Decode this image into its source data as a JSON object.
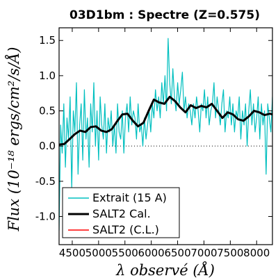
{
  "chart_data": {
    "type": "line",
    "title": "03D1bm : Spectre (Z=0.575)",
    "xlabel": "λ observé (Å)",
    "ylabel": "Flux (10⁻¹⁸ ergs/cm²/s/Å)",
    "xlim": [
      4250,
      8300
    ],
    "ylim": [
      -1.4,
      1.68
    ],
    "xticks": [
      4500,
      5000,
      5500,
      6000,
      6500,
      7000,
      7500,
      8000
    ],
    "xtick_labels": [
      "4500",
      "5000",
      "5500",
      "6000",
      "6500",
      "7000",
      "7500",
      "8000"
    ],
    "yticks": [
      -1.0,
      -0.5,
      0.0,
      0.5,
      1.0,
      1.5
    ],
    "ytick_labels": [
      "-1.0",
      "-0.5",
      "0.0",
      "0.5",
      "1.0",
      "1.5"
    ],
    "zero_line": true,
    "grid": false,
    "legend_position": "lower-left",
    "legend": [
      "Extrait (15 A)",
      "SALT2 Cal.",
      "SALT2 (C.L.)"
    ],
    "series": [
      {
        "name": "Extrait (15 A)",
        "color": "#00bfbf",
        "x": [
          4250,
          4280,
          4310,
          4340,
          4370,
          4400,
          4430,
          4460,
          4490,
          4520,
          4550,
          4580,
          4610,
          4640,
          4670,
          4700,
          4730,
          4760,
          4790,
          4820,
          4850,
          4880,
          4910,
          4940,
          4970,
          5000,
          5030,
          5060,
          5090,
          5120,
          5150,
          5180,
          5210,
          5240,
          5270,
          5300,
          5330,
          5360,
          5390,
          5420,
          5450,
          5480,
          5510,
          5540,
          5570,
          5600,
          5630,
          5660,
          5690,
          5720,
          5750,
          5780,
          5810,
          5840,
          5870,
          5900,
          5930,
          5960,
          5990,
          6020,
          6050,
          6080,
          6110,
          6140,
          6170,
          6200,
          6230,
          6260,
          6290,
          6320,
          6350,
          6380,
          6410,
          6440,
          6470,
          6500,
          6530,
          6560,
          6590,
          6620,
          6650,
          6680,
          6710,
          6740,
          6770,
          6800,
          6830,
          6860,
          6890,
          6920,
          6950,
          6980,
          7010,
          7040,
          7070,
          7100,
          7130,
          7160,
          7190,
          7220,
          7250,
          7280,
          7310,
          7340,
          7370,
          7400,
          7430,
          7460,
          7490,
          7520,
          7550,
          7580,
          7610,
          7640,
          7670,
          7700,
          7730,
          7760,
          7790,
          7820,
          7850,
          7880,
          7910,
          7940,
          7970,
          8000,
          8030,
          8060,
          8090,
          8120,
          8150,
          8180,
          8210,
          8240,
          8270,
          8300
        ],
        "y": [
          -1.2,
          0.3,
          -0.1,
          0.6,
          -0.3,
          0.4,
          0.1,
          0.7,
          -0.6,
          0.5,
          0.2,
          0.9,
          -0.4,
          0.3,
          0.6,
          -0.2,
          0.8,
          0.1,
          0.4,
          -0.3,
          0.6,
          0.2,
          0.9,
          0.0,
          0.5,
          -0.2,
          0.7,
          0.3,
          0.1,
          0.6,
          -0.1,
          0.4,
          0.2,
          0.5,
          0.0,
          0.3,
          -0.1,
          0.6,
          0.2,
          0.1,
          0.5,
          -0.1,
          0.4,
          0.6,
          0.2,
          0.7,
          0.3,
          0.5,
          0.4,
          0.1,
          0.6,
          0.2,
          0.3,
          0.0,
          0.4,
          0.1,
          0.3,
          0.5,
          0.2,
          0.6,
          0.4,
          0.8,
          0.5,
          0.7,
          0.4,
          0.9,
          0.6,
          1.0,
          0.5,
          1.53,
          0.9,
          0.6,
          1.1,
          0.7,
          0.5,
          0.9,
          0.6,
          0.8,
          1.05,
          0.5,
          0.7,
          0.4,
          0.6,
          0.5,
          0.3,
          0.6,
          0.4,
          0.7,
          0.5,
          0.2,
          0.6,
          0.5,
          0.8,
          0.4,
          0.7,
          0.3,
          0.5,
          0.6,
          0.9,
          0.4,
          0.7,
          0.5,
          0.3,
          0.6,
          0.8,
          0.2,
          0.5,
          0.4,
          0.7,
          0.3,
          0.6,
          0.2,
          0.5,
          0.4,
          0.7,
          0.1,
          0.5,
          0.3,
          0.6,
          0.0,
          0.5,
          0.8,
          0.3,
          0.6,
          0.2,
          0.4,
          0.7,
          0.1,
          0.6,
          0.3,
          0.5,
          -0.4,
          0.6,
          0.4,
          0.2,
          0.7
        ]
      },
      {
        "name": "SALT2 Cal.",
        "color": "#000000",
        "x": [
          4250,
          4350,
          4450,
          4550,
          4650,
          4750,
          4850,
          4950,
          5050,
          5150,
          5250,
          5350,
          5450,
          5550,
          5650,
          5750,
          5850,
          5950,
          6050,
          6150,
          6250,
          6350,
          6450,
          6550,
          6650,
          6750,
          6850,
          6950,
          7050,
          7150,
          7250,
          7350,
          7450,
          7550,
          7650,
          7750,
          7850,
          7950,
          8050,
          8150,
          8250,
          8300
        ],
        "y": [
          0.02,
          0.03,
          0.1,
          0.17,
          0.22,
          0.2,
          0.27,
          0.28,
          0.22,
          0.2,
          0.24,
          0.35,
          0.45,
          0.46,
          0.36,
          0.28,
          0.33,
          0.5,
          0.66,
          0.62,
          0.6,
          0.7,
          0.64,
          0.55,
          0.48,
          0.58,
          0.54,
          0.57,
          0.55,
          0.6,
          0.5,
          0.4,
          0.48,
          0.45,
          0.38,
          0.36,
          0.42,
          0.5,
          0.48,
          0.44,
          0.46,
          0.45
        ]
      },
      {
        "name": "SALT2 (C.L.)",
        "color": "#ff0000",
        "x": [],
        "y": []
      }
    ]
  }
}
